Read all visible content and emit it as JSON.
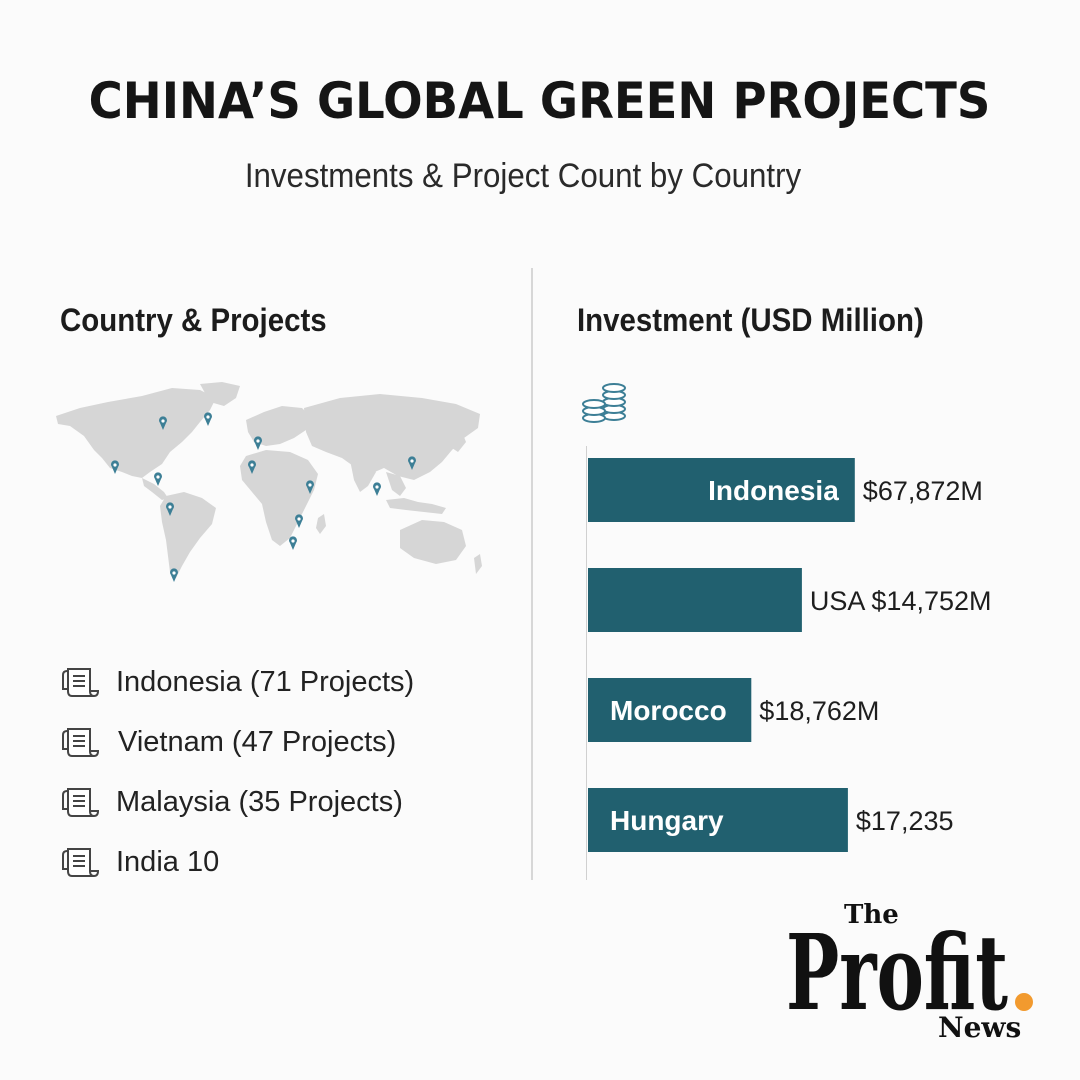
{
  "header": {
    "title": "CHINA’S GLOBAL GREEN PROJECTS",
    "subtitle": "Investments & Project Count by Country"
  },
  "left_panel": {
    "heading": "Country & Projects",
    "map_icon": "world-map-with-pins",
    "projects": [
      {
        "text": "Indonesia (71 Projects)",
        "icon": "document-icon"
      },
      {
        "text": "Vietnam (47 Projects)",
        "icon": "document-icon"
      },
      {
        "text": "Malaysia (35 Projects)",
        "icon": "document-icon"
      },
      {
        "text": "India 10",
        "icon": "document-icon"
      }
    ]
  },
  "right_panel": {
    "heading": "Investment (USD Million)",
    "icon": "coin-stack-icon"
  },
  "chart_data": {
    "type": "bar",
    "orientation": "horizontal",
    "title": "Investment (USD Million)",
    "categories": [
      "Indonesia",
      "USA",
      "Morocco",
      "Hungary"
    ],
    "values": [
      67872,
      14752,
      18762,
      17235
    ],
    "value_labels": [
      "$67,872M",
      "USA $14,752M",
      "$18,762M",
      "$17,235"
    ],
    "label_inside": [
      true,
      false,
      true,
      true
    ],
    "bar_fraction": [
      0.58,
      0.465,
      0.355,
      0.565
    ],
    "bar_color": "#21606f",
    "grid": false
  },
  "logo": {
    "line1": "The",
    "line2": "Profit",
    "line3": "News",
    "dot_color": "#f29a2e"
  },
  "colors": {
    "bar": "#21606f",
    "map": "#d4d4d4",
    "pin": "#3d7f96",
    "accent_dot": "#f29a2e"
  }
}
